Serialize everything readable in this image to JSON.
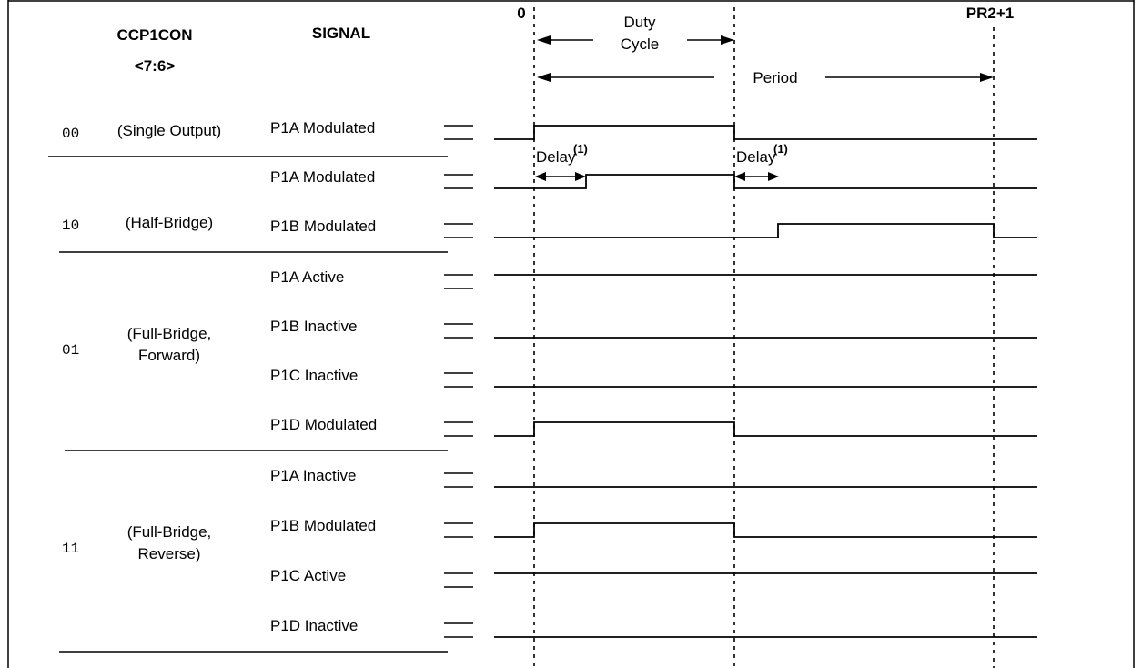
{
  "header": {
    "col1_title": "CCP1CON",
    "col1_sub": "<7:6>",
    "col2_title": "SIGNAL",
    "marker_start": "0",
    "marker_end": "PR2+1"
  },
  "annotations": {
    "duty_line1": "Duty",
    "duty_line2": "Cycle",
    "period": "Period",
    "delay": "Delay",
    "delay_note": "(1)"
  },
  "groups": [
    {
      "code": "00",
      "mode_lines": [
        "(Single Output)"
      ]
    },
    {
      "code": "10",
      "mode_lines": [
        "(Half-Bridge)"
      ]
    },
    {
      "code": "01",
      "mode_lines": [
        "(Full-Bridge,",
        "Forward)"
      ]
    },
    {
      "code": "11",
      "mode_lines": [
        "(Full-Bridge,",
        "Reverse)"
      ]
    }
  ],
  "signals": [
    {
      "label": "P1A Modulated",
      "wave": "pulse"
    },
    {
      "label": "P1A Modulated",
      "wave": "delayed-pulse"
    },
    {
      "label": "P1B Modulated",
      "wave": "complement-delayed"
    },
    {
      "label": "P1A Active",
      "wave": "high"
    },
    {
      "label": "P1B Inactive",
      "wave": "low"
    },
    {
      "label": "P1C Inactive",
      "wave": "low"
    },
    {
      "label": "P1D Modulated",
      "wave": "pulse"
    },
    {
      "label": "P1A Inactive",
      "wave": "low"
    },
    {
      "label": "P1B Modulated",
      "wave": "pulse"
    },
    {
      "label": "P1C Active",
      "wave": "high"
    },
    {
      "label": "P1D Inactive",
      "wave": "low"
    }
  ]
}
